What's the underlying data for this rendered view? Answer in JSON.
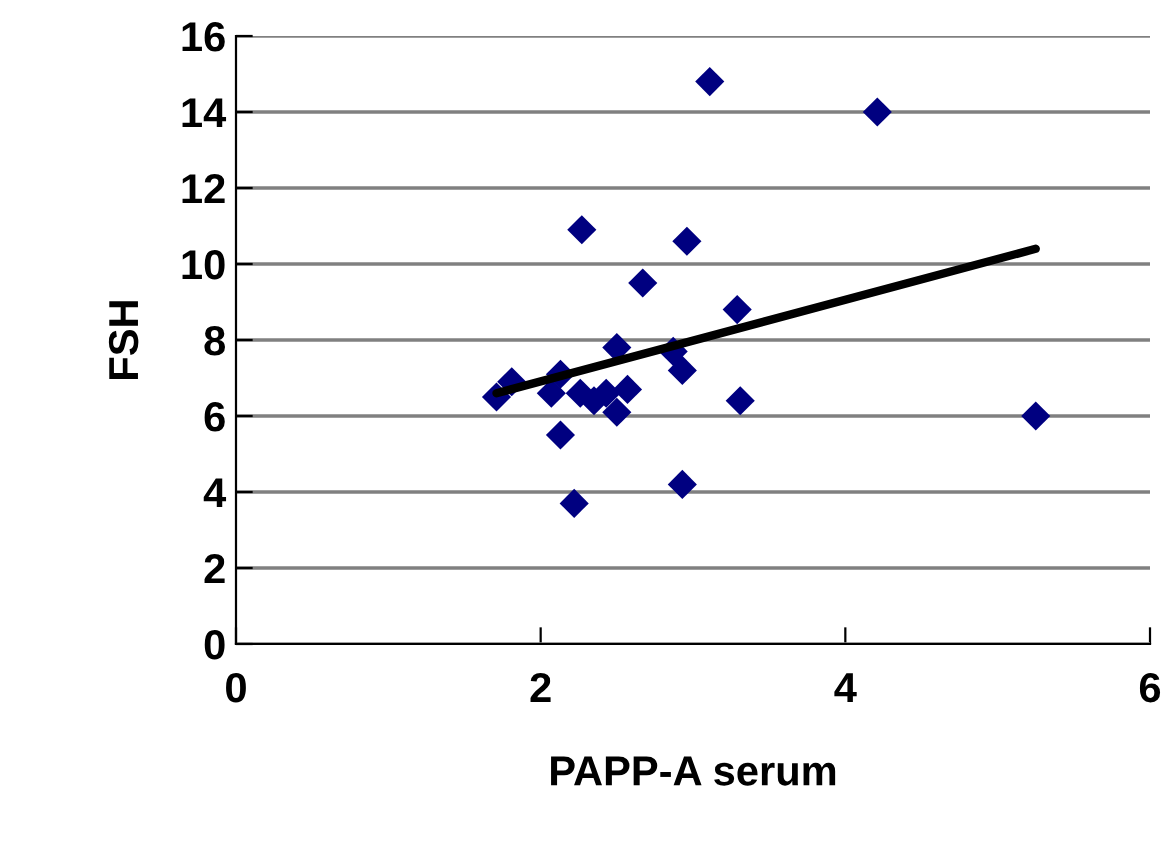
{
  "chart_data": {
    "type": "scatter",
    "xlabel": "PAPP-A serum",
    "ylabel": "FSH",
    "xlim": [
      0,
      6
    ],
    "xticks": [
      0,
      2,
      4,
      6
    ],
    "ylim": [
      0,
      16
    ],
    "yticks": [
      0,
      2,
      4,
      6,
      8,
      10,
      12,
      14,
      16
    ],
    "grid": "y",
    "legend": false,
    "series": [
      {
        "marker": "diamond",
        "color": "#000080",
        "x": [
          3.11,
          4.21,
          2.27,
          2.96,
          2.67,
          3.29,
          2.5,
          2.87,
          2.93,
          2.13,
          1.81,
          1.71,
          2.07,
          2.26,
          2.35,
          2.43,
          2.57,
          2.5,
          3.31,
          2.13,
          2.93,
          2.22,
          5.25
        ],
        "values": [
          14.8,
          14.0,
          10.9,
          10.6,
          9.5,
          8.8,
          7.8,
          7.7,
          7.2,
          7.1,
          6.9,
          6.5,
          6.6,
          6.6,
          6.4,
          6.6,
          6.7,
          6.1,
          6.4,
          5.5,
          4.2,
          3.7,
          6.0
        ]
      },
      {
        "type": "line",
        "marker": "none",
        "color": "#000000",
        "x": [
          1.71,
          5.25
        ],
        "values": [
          6.6,
          10.4
        ]
      }
    ]
  }
}
